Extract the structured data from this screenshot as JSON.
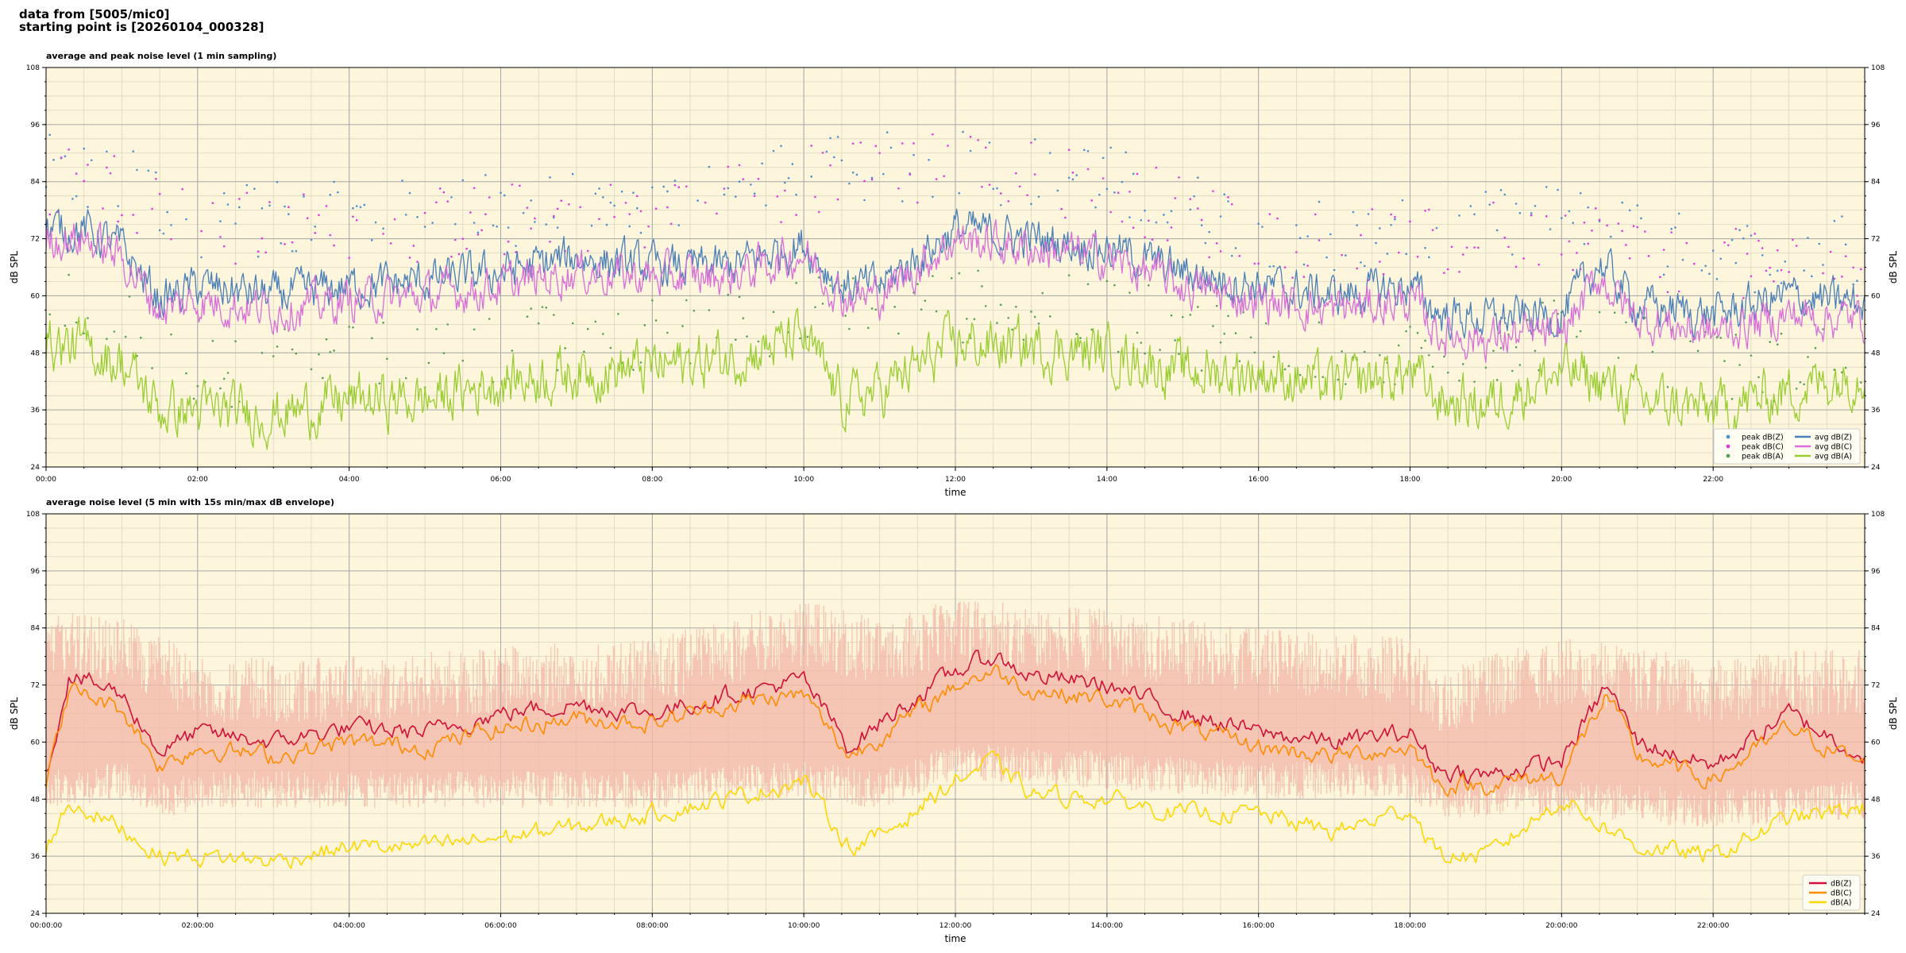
{
  "header": {
    "line1": "data from [5005/mic0]",
    "line2": "starting point is [20260104_000328]"
  },
  "colors": {
    "panel_bg": "#fdf6dc",
    "grid_major": "#a8a8a8",
    "grid_minor": "#dcd6c0",
    "peak_z": "#4f8fd0",
    "peak_c": "#e038e0",
    "peak_a": "#55a055",
    "avg_z": "#4a7fb8",
    "avg_c": "#d86ed8",
    "avg_a": "#9acd32",
    "env_fill": "#f4b8a8",
    "line_z": "#d0103a",
    "line_c": "#ff8c00",
    "line_a": "#ffd700"
  },
  "chart_data": [
    {
      "type": "line",
      "title": "average and peak noise level (1 min sampling)",
      "xlabel": "time",
      "ylabel": "dB SPL",
      "ylim": [
        24,
        108
      ],
      "xlim_hours": [
        0,
        24
      ],
      "x_ticks": [
        "00:00",
        "02:00",
        "04:00",
        "06:00",
        "08:00",
        "10:00",
        "12:00",
        "14:00",
        "16:00",
        "18:00",
        "20:00",
        "22:00"
      ],
      "y_ticks": [
        "24",
        "36",
        "48",
        "60",
        "72",
        "84",
        "96",
        "108"
      ],
      "grid": true,
      "legend_position": "bottom-right",
      "legend": [
        "peak dB(Z)",
        "peak dB(C)",
        "peak dB(A)",
        "avg dB(Z)",
        "avg dB(C)",
        "avg dB(A)"
      ],
      "series": [
        {
          "name": "avg dB(Z)",
          "color": "#4a7fb8",
          "x_hours": [
            0,
            0.5,
            1,
            1.5,
            2,
            3,
            4,
            5,
            6,
            7,
            8,
            9,
            10,
            10.5,
            11,
            12,
            13,
            14,
            15,
            16,
            17,
            18,
            18.4,
            19,
            20,
            20.5,
            21,
            22,
            23,
            24
          ],
          "values": [
            74,
            74,
            70,
            59,
            62,
            60,
            62,
            63,
            65,
            68,
            66,
            66,
            71,
            62,
            62,
            74,
            72,
            70,
            65,
            62,
            60,
            62,
            56,
            55,
            56,
            67,
            58,
            56,
            60,
            58
          ]
        },
        {
          "name": "avg dB(C)",
          "color": "#d86ed8",
          "x_hours": [
            0,
            0.5,
            1,
            1.5,
            2,
            3,
            4,
            5,
            6,
            7,
            8,
            9,
            10,
            10.5,
            11,
            12,
            13,
            14,
            15,
            16,
            17,
            18,
            18.4,
            19,
            20,
            20.5,
            21,
            22,
            23,
            24
          ],
          "values": [
            72,
            72,
            68,
            57,
            59,
            57,
            59,
            60,
            62,
            65,
            64,
            64,
            69,
            60,
            60,
            72,
            70,
            68,
            62,
            59,
            57,
            59,
            52,
            51,
            52,
            64,
            55,
            52,
            56,
            55
          ]
        },
        {
          "name": "avg dB(A)",
          "color": "#9acd32",
          "x_hours": [
            0,
            0.5,
            1,
            1.5,
            2,
            3,
            4,
            5,
            6,
            7,
            8,
            9,
            10,
            10.5,
            11,
            12,
            13,
            14,
            15,
            16,
            17,
            18,
            18.4,
            19,
            20,
            20.5,
            21,
            22,
            23,
            24
          ],
          "values": [
            50,
            49,
            46,
            36,
            36,
            35,
            38,
            38,
            42,
            44,
            45,
            47,
            51,
            38,
            40,
            50,
            49,
            48,
            44,
            44,
            41,
            44,
            38,
            37,
            44,
            42,
            38,
            36,
            40,
            44
          ]
        },
        {
          "name": "peak dB(Z)",
          "color": "#4f8fd0",
          "x_hours": [
            0,
            1,
            2,
            4,
            6,
            8,
            10,
            12,
            14,
            16,
            18,
            20,
            22,
            24
          ],
          "values": [
            86,
            84,
            76,
            76,
            78,
            78,
            85,
            88,
            84,
            74,
            72,
            76,
            68,
            70
          ]
        },
        {
          "name": "peak dB(C)",
          "color": "#e038e0",
          "x_hours": [
            0,
            1,
            2,
            4,
            6,
            8,
            10,
            12,
            14,
            16,
            18,
            20,
            22,
            24
          ],
          "values": [
            85,
            83,
            74,
            74,
            76,
            77,
            84,
            87,
            83,
            72,
            70,
            74,
            66,
            68
          ]
        },
        {
          "name": "peak dB(A)",
          "color": "#55a055",
          "x_hours": [
            0,
            1,
            2,
            4,
            6,
            8,
            10,
            12,
            14,
            16,
            18,
            20,
            22,
            24
          ],
          "values": [
            58,
            55,
            44,
            46,
            50,
            52,
            56,
            58,
            56,
            50,
            48,
            52,
            44,
            48
          ]
        }
      ]
    },
    {
      "type": "line",
      "title": "average noise level (5 min with 15s min/max dB envelope)",
      "xlabel": "time",
      "ylabel": "dB SPL",
      "ylim": [
        24,
        108
      ],
      "xlim_hours": [
        0,
        24
      ],
      "x_ticks": [
        "00:00:00",
        "02:00:00",
        "04:00:00",
        "06:00:00",
        "08:00:00",
        "10:00:00",
        "12:00:00",
        "14:00:00",
        "16:00:00",
        "18:00:00",
        "20:00:00",
        "22:00:00"
      ],
      "y_ticks": [
        "24",
        "36",
        "48",
        "60",
        "72",
        "84",
        "96",
        "108"
      ],
      "grid": true,
      "legend_position": "bottom-right",
      "legend": [
        "dB(Z)",
        "dB(C)",
        "dB(A)"
      ],
      "envelope": {
        "x_hours": [
          0,
          1,
          1.6,
          2,
          4,
          6,
          8,
          10,
          11,
          12,
          14,
          16,
          18,
          18.4,
          20,
          22,
          24
        ],
        "min": [
          50,
          52,
          48,
          50,
          50,
          50,
          50,
          52,
          50,
          56,
          54,
          52,
          52,
          48,
          48,
          46,
          48
        ],
        "max": [
          88,
          86,
          82,
          78,
          78,
          80,
          82,
          90,
          86,
          90,
          88,
          84,
          82,
          76,
          82,
          78,
          80
        ]
      },
      "series": [
        {
          "name": "dB(Z)",
          "color": "#d0103a",
          "x_hours": [
            0,
            0.3,
            0.5,
            1,
            1.5,
            2,
            3,
            4,
            5,
            6,
            7,
            8,
            9,
            10,
            10.6,
            11,
            12,
            12.5,
            13,
            14,
            15,
            16,
            17,
            18,
            18.4,
            19,
            20,
            20.6,
            21,
            22,
            23,
            24
          ],
          "values": [
            53,
            74,
            73,
            70,
            58,
            62,
            60,
            63,
            62,
            66,
            68,
            66,
            70,
            73,
            59,
            64,
            75,
            78,
            74,
            72,
            66,
            62,
            60,
            62,
            54,
            53,
            56,
            72,
            60,
            55,
            66,
            57
          ]
        },
        {
          "name": "dB(C)",
          "color": "#ff8c00",
          "x_hours": [
            0,
            0.3,
            0.5,
            1,
            1.5,
            2,
            3,
            4,
            5,
            6,
            7,
            8,
            9,
            10,
            10.6,
            11,
            12,
            12.5,
            13,
            14,
            15,
            16,
            17,
            18,
            18.4,
            19,
            20,
            20.6,
            21,
            22,
            23,
            24
          ],
          "values": [
            51,
            71,
            70,
            67,
            55,
            59,
            57,
            60,
            59,
            63,
            65,
            64,
            68,
            70,
            57,
            61,
            72,
            75,
            71,
            69,
            63,
            59,
            57,
            59,
            51,
            51,
            53,
            70,
            57,
            52,
            63,
            55
          ]
        },
        {
          "name": "dB(A)",
          "color": "#ffd700",
          "x_hours": [
            0,
            0.3,
            0.5,
            1,
            1.5,
            2,
            3,
            4,
            5,
            6,
            7,
            8,
            9,
            10,
            10.6,
            11,
            12,
            12.5,
            13,
            14,
            15,
            16,
            17,
            18,
            18.4,
            19,
            20,
            20.6,
            21,
            22,
            23,
            24
          ],
          "values": [
            38,
            47,
            46,
            42,
            36,
            36,
            35,
            38,
            38,
            40,
            42,
            45,
            48,
            52,
            38,
            40,
            52,
            56,
            49,
            48,
            45,
            45,
            41,
            46,
            36,
            36,
            48,
            42,
            38,
            36,
            44,
            46
          ]
        }
      ]
    }
  ]
}
